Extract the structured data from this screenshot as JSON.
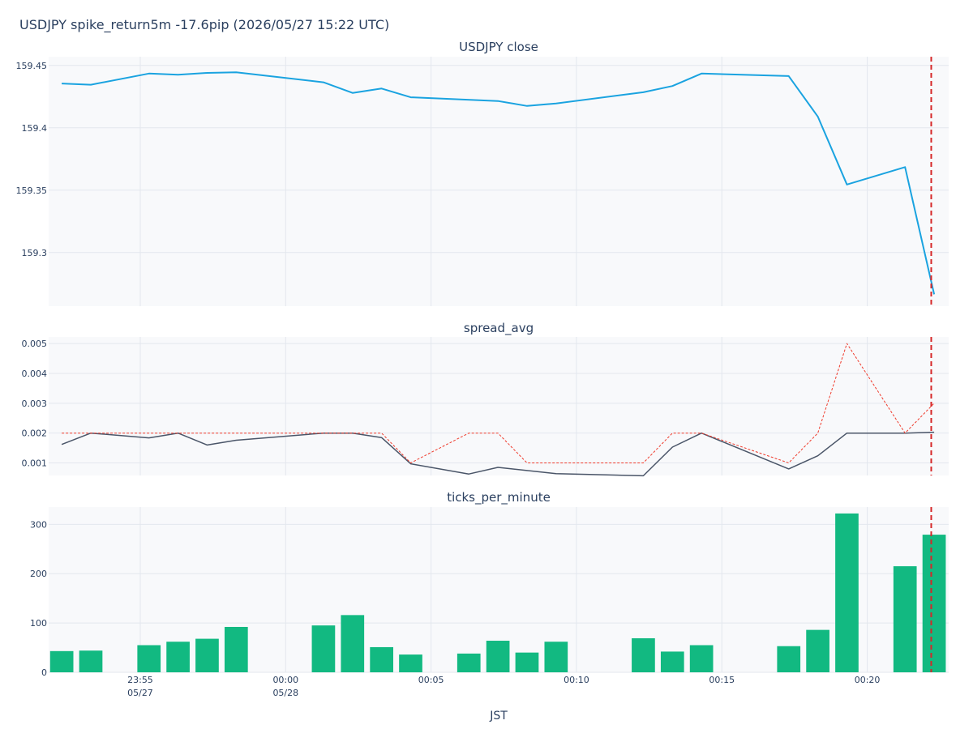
{
  "chart_data": {
    "type": "line",
    "title": "USDJPY spike_return5m -17.6pip (2026/05/27 15:22 UTC)",
    "xlabel": "JST",
    "x_ticks": [
      {
        "minute": 0,
        "label": "23:55",
        "sub": "05/27"
      },
      {
        "minute": 5,
        "label": "00:00",
        "sub": "05/28"
      },
      {
        "minute": 10,
        "label": "00:05",
        "sub": ""
      },
      {
        "minute": 15,
        "label": "00:10",
        "sub": ""
      },
      {
        "minute": 20,
        "label": "00:15",
        "sub": ""
      },
      {
        "minute": 25,
        "label": "00:20",
        "sub": ""
      }
    ],
    "event_minute": 27.2,
    "x_range": [
      -3.15,
      27.8
    ],
    "panels": [
      {
        "key": "close",
        "title": "USDJPY close",
        "type": "line",
        "ylim": [
          159.257,
          159.457
        ],
        "yticks": [
          159.3,
          159.35,
          159.4,
          159.45
        ],
        "ytick_labels": [
          "159.3",
          "159.35",
          "159.4",
          "159.45"
        ],
        "series": [
          {
            "color": "#1aa3e0",
            "points": [
              [
                -2.7,
                159.4355
              ],
              [
                -1.7,
                159.4345
              ],
              [
                0.3,
                159.4435
              ],
              [
                1.3,
                159.4425
              ],
              [
                2.3,
                159.444
              ],
              [
                3.3,
                159.4445
              ],
              [
                6.3,
                159.4365
              ],
              [
                7.3,
                159.428
              ],
              [
                8.3,
                159.4315
              ],
              [
                9.3,
                159.4245
              ],
              [
                12.3,
                159.4215
              ],
              [
                13.3,
                159.4175
              ],
              [
                14.3,
                159.4195
              ],
              [
                17.3,
                159.4285
              ],
              [
                18.3,
                159.4335
              ],
              [
                19.3,
                159.4435
              ],
              [
                22.3,
                159.4415
              ],
              [
                23.3,
                159.409
              ],
              [
                24.3,
                159.3545
              ],
              [
                26.3,
                159.3685
              ],
              [
                27.3,
                159.2665
              ]
            ]
          }
        ]
      },
      {
        "key": "spread",
        "title": "spread_avg",
        "type": "line",
        "ylim": [
          0.00058,
          0.00522
        ],
        "yticks": [
          0.001,
          0.002,
          0.003,
          0.004,
          0.005
        ],
        "ytick_labels": [
          "0.001",
          "0.002",
          "0.003",
          "0.004",
          "0.005"
        ],
        "series": [
          {
            "color": "#4a5568",
            "dash": "none",
            "points": [
              [
                -2.7,
                0.00162
              ],
              [
                -1.7,
                0.002
              ],
              [
                0.3,
                0.00184
              ],
              [
                1.3,
                0.002
              ],
              [
                2.3,
                0.0016
              ],
              [
                3.3,
                0.00176
              ],
              [
                6.3,
                0.002
              ],
              [
                7.3,
                0.002
              ],
              [
                8.3,
                0.00185
              ],
              [
                9.3,
                0.00097
              ],
              [
                11.3,
                0.00063
              ],
              [
                12.3,
                0.00085
              ],
              [
                14.3,
                0.00064
              ],
              [
                17.3,
                0.00057
              ],
              [
                18.3,
                0.00153
              ],
              [
                19.3,
                0.002
              ],
              [
                22.3,
                0.0008
              ],
              [
                23.3,
                0.00124
              ],
              [
                24.3,
                0.002
              ],
              [
                26.3,
                0.002
              ],
              [
                27.3,
                0.00203
              ]
            ]
          },
          {
            "color": "#ef3b2c",
            "dash": "3,2",
            "points": [
              [
                -2.7,
                0.002
              ],
              [
                -1.7,
                0.002
              ],
              [
                0.3,
                0.002
              ],
              [
                1.3,
                0.002
              ],
              [
                2.3,
                0.002
              ],
              [
                3.3,
                0.002
              ],
              [
                6.3,
                0.002
              ],
              [
                7.3,
                0.002
              ],
              [
                8.3,
                0.002
              ],
              [
                9.3,
                0.001
              ],
              [
                11.3,
                0.002
              ],
              [
                12.3,
                0.002
              ],
              [
                13.3,
                0.001
              ],
              [
                17.3,
                0.001
              ],
              [
                18.3,
                0.002
              ],
              [
                19.3,
                0.002
              ],
              [
                22.3,
                0.001
              ],
              [
                23.3,
                0.002
              ],
              [
                24.3,
                0.005
              ],
              [
                26.3,
                0.002
              ],
              [
                27.3,
                0.003
              ]
            ]
          }
        ]
      },
      {
        "key": "ticks",
        "title": "ticks_per_minute",
        "type": "bar",
        "ylim": [
          0,
          335
        ],
        "yticks": [
          0,
          100,
          200,
          300
        ],
        "ytick_labels": [
          "0",
          "100",
          "200",
          "300"
        ],
        "bar_color": "#12b981",
        "bar_width": 0.8,
        "bars": [
          [
            -2.7,
            43
          ],
          [
            -1.7,
            44
          ],
          [
            0.3,
            55
          ],
          [
            1.3,
            62
          ],
          [
            2.3,
            68
          ],
          [
            3.3,
            92
          ],
          [
            6.3,
            95
          ],
          [
            7.3,
            116
          ],
          [
            8.3,
            51
          ],
          [
            9.3,
            36
          ],
          [
            11.3,
            38
          ],
          [
            12.3,
            64
          ],
          [
            13.3,
            40
          ],
          [
            14.3,
            62
          ],
          [
            17.3,
            69
          ],
          [
            18.3,
            42
          ],
          [
            19.3,
            55
          ],
          [
            22.3,
            53
          ],
          [
            23.3,
            86
          ],
          [
            24.3,
            322
          ],
          [
            26.3,
            215
          ],
          [
            27.3,
            279
          ]
        ]
      }
    ]
  }
}
